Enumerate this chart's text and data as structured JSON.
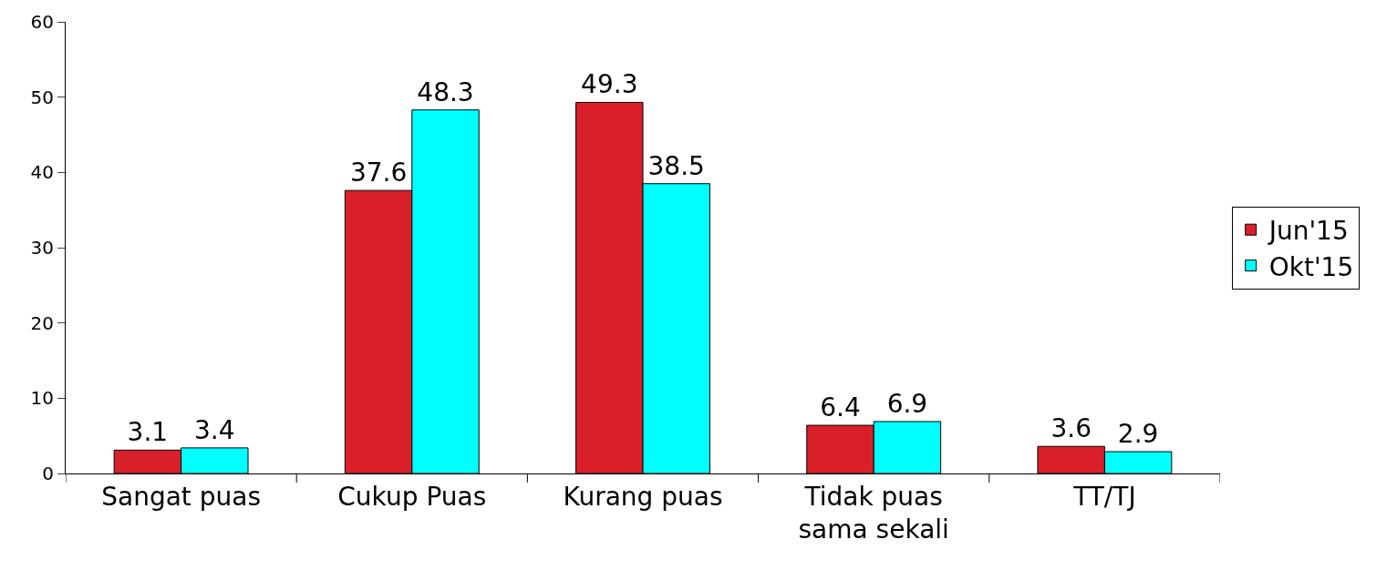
{
  "chart_data": {
    "type": "bar",
    "categories": [
      "Sangat puas",
      "Cukup Puas",
      "Kurang puas",
      "Tidak puas sama sekali",
      "TT/TJ"
    ],
    "series": [
      {
        "name": "Jun'15",
        "color": "#d9202a",
        "values": [
          3.1,
          37.6,
          49.3,
          6.4,
          3.6
        ]
      },
      {
        "name": "Okt'15",
        "color": "#00ffff",
        "values": [
          3.4,
          48.3,
          38.5,
          6.9,
          2.9
        ]
      }
    ],
    "ylim": [
      0,
      60
    ],
    "yticks": [
      0,
      10,
      20,
      30,
      40,
      50,
      60
    ],
    "data_labels": true,
    "grid": false,
    "legend": "right"
  }
}
